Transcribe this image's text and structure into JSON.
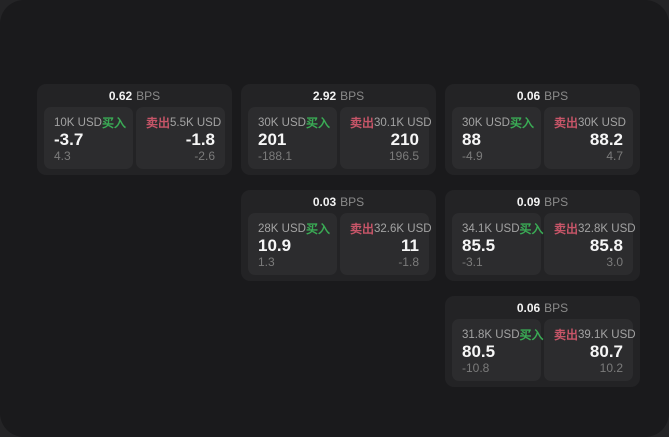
{
  "labels": {
    "bps_unit": "BPS",
    "buy": "买入",
    "sell": "卖出"
  },
  "colors": {
    "backdrop": "#242426",
    "window_background": "#1a1a1c",
    "card_background": "#232325",
    "panel_background": "#2c2c2e",
    "buy_accent": "#3aab55",
    "sell_accent": "#c75568",
    "primary_text": "#f6f6f6",
    "muted_text": "#a3a3a3",
    "faint_text": "#7b7b7b"
  },
  "cards": [
    {
      "bps": "0.62",
      "buy": {
        "amount": "10K USD",
        "value": "-3.7",
        "sub": "4.3"
      },
      "sell": {
        "amount": "5.5K USD",
        "value": "-1.8",
        "sub": "-2.6"
      }
    },
    {
      "bps": "2.92",
      "buy": {
        "amount": "30K USD",
        "value": "201",
        "sub": "-188.1"
      },
      "sell": {
        "amount": "30.1K USD",
        "value": "210",
        "sub": "196.5"
      }
    },
    {
      "bps": "0.03",
      "buy": {
        "amount": "28K USD",
        "value": "10.9",
        "sub": "1.3"
      },
      "sell": {
        "amount": "32.6K USD",
        "value": "11",
        "sub": "-1.8"
      }
    },
    {
      "bps": "0.06",
      "buy": {
        "amount": "30K USD",
        "value": "88",
        "sub": "-4.9"
      },
      "sell": {
        "amount": "30K USD",
        "value": "88.2",
        "sub": "4.7"
      }
    },
    {
      "bps": "0.09",
      "buy": {
        "amount": "34.1K USD",
        "value": "85.5",
        "sub": "-3.1"
      },
      "sell": {
        "amount": "32.8K USD",
        "value": "85.8",
        "sub": "3.0"
      }
    },
    {
      "bps": "0.06",
      "buy": {
        "amount": "31.8K USD",
        "value": "80.5",
        "sub": "-10.8"
      },
      "sell": {
        "amount": "39.1K USD",
        "value": "80.7",
        "sub": "10.2"
      }
    }
  ]
}
